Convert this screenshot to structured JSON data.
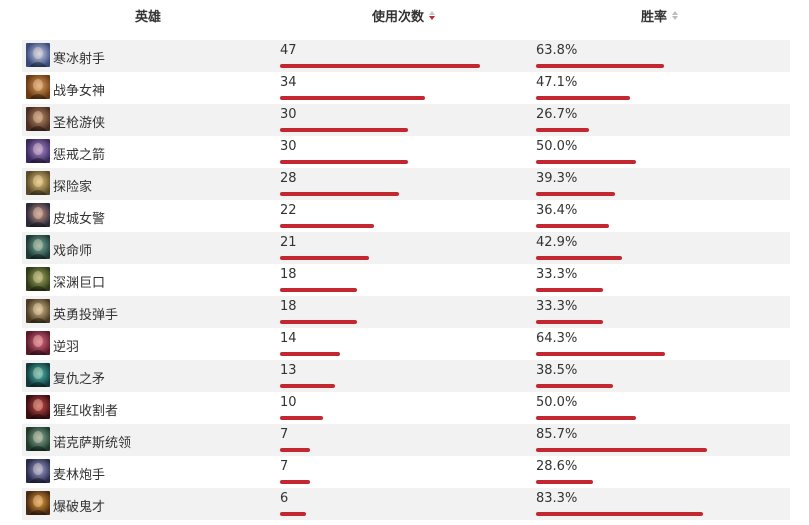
{
  "header": {
    "hero": "英雄",
    "uses": "使用次数",
    "winrate": "胜率"
  },
  "colors": {
    "bar": "#c3272f",
    "row_alt": "#f2f2f2",
    "sort_active": "#c0282e",
    "sort_inactive": "#bbbbbb"
  },
  "sort": {
    "column": "uses",
    "direction": "desc"
  },
  "heroes": [
    {
      "name": "寒冰射手",
      "uses": "47",
      "winrate": "63.8%",
      "uses_value": 47,
      "winrate_value": 63.8,
      "avatar_icon": "ashe-portrait-icon",
      "avatar_colors": [
        "#3a4a7a",
        "#c9d2f0"
      ]
    },
    {
      "name": "战争女神",
      "uses": "34",
      "winrate": "47.1%",
      "uses_value": 34,
      "winrate_value": 47.1,
      "avatar_icon": "sivir-portrait-icon",
      "avatar_colors": [
        "#6b3a14",
        "#e0a060"
      ]
    },
    {
      "name": "圣枪游侠",
      "uses": "30",
      "winrate": "26.7%",
      "uses_value": 30,
      "winrate_value": 26.7,
      "avatar_icon": "lucian-portrait-icon",
      "avatar_colors": [
        "#4a2e22",
        "#c08f6a"
      ]
    },
    {
      "name": "惩戒之箭",
      "uses": "30",
      "winrate": "50.0%",
      "uses_value": 30,
      "winrate_value": 50.0,
      "avatar_icon": "varus-portrait-icon",
      "avatar_colors": [
        "#3a2a5a",
        "#b090d8"
      ]
    },
    {
      "name": "探险家",
      "uses": "28",
      "winrate": "39.3%",
      "uses_value": 28,
      "winrate_value": 39.3,
      "avatar_icon": "ezreal-portrait-icon",
      "avatar_colors": [
        "#5a4a2a",
        "#e8c878"
      ]
    },
    {
      "name": "皮城女警",
      "uses": "22",
      "winrate": "36.4%",
      "uses_value": 22,
      "winrate_value": 36.4,
      "avatar_icon": "caitlyn-portrait-icon",
      "avatar_colors": [
        "#2a2a3a",
        "#c89888"
      ]
    },
    {
      "name": "戏命师",
      "uses": "21",
      "winrate": "42.9%",
      "uses_value": 21,
      "winrate_value": 42.9,
      "avatar_icon": "jhin-portrait-icon",
      "avatar_colors": [
        "#1e3a36",
        "#7ab0a0"
      ]
    },
    {
      "name": "深渊巨口",
      "uses": "18",
      "winrate": "33.3%",
      "uses_value": 18,
      "winrate_value": 33.3,
      "avatar_icon": "kogmaw-portrait-icon",
      "avatar_colors": [
        "#2e3a1a",
        "#a8b060"
      ]
    },
    {
      "name": "英勇投弹手",
      "uses": "18",
      "winrate": "33.3%",
      "uses_value": 18,
      "winrate_value": 33.3,
      "avatar_icon": "corki-portrait-icon",
      "avatar_colors": [
        "#4a3a22",
        "#d8c090"
      ]
    },
    {
      "name": "逆羽",
      "uses": "14",
      "winrate": "64.3%",
      "uses_value": 14,
      "winrate_value": 64.3,
      "avatar_icon": "xayah-portrait-icon",
      "avatar_colors": [
        "#5a1a2a",
        "#e07088"
      ]
    },
    {
      "name": "复仇之矛",
      "uses": "13",
      "winrate": "38.5%",
      "uses_value": 13,
      "winrate_value": 38.5,
      "avatar_icon": "kalista-portrait-icon",
      "avatar_colors": [
        "#123a3a",
        "#50c0b8"
      ]
    },
    {
      "name": "猩红收割者",
      "uses": "10",
      "winrate": "50.0%",
      "uses_value": 10,
      "winrate_value": 50.0,
      "avatar_icon": "vladimir-portrait-icon",
      "avatar_colors": [
        "#3a0e10",
        "#d05050"
      ]
    },
    {
      "name": "诺克萨斯统领",
      "uses": "7",
      "winrate": "85.7%",
      "uses_value": 7,
      "winrate_value": 85.7,
      "avatar_icon": "swain-portrait-icon",
      "avatar_colors": [
        "#1e3a2a",
        "#90b0a0"
      ]
    },
    {
      "name": "麦林炮手",
      "uses": "7",
      "winrate": "28.6%",
      "uses_value": 7,
      "winrate_value": 28.6,
      "avatar_icon": "tristana-portrait-icon",
      "avatar_colors": [
        "#2a2a4a",
        "#a0a8d8"
      ]
    },
    {
      "name": "爆破鬼才",
      "uses": "6",
      "winrate": "83.3%",
      "uses_value": 6,
      "winrate_value": 83.3,
      "avatar_icon": "ziggs-portrait-icon",
      "avatar_colors": [
        "#4a2a10",
        "#e8a040"
      ]
    }
  ]
}
